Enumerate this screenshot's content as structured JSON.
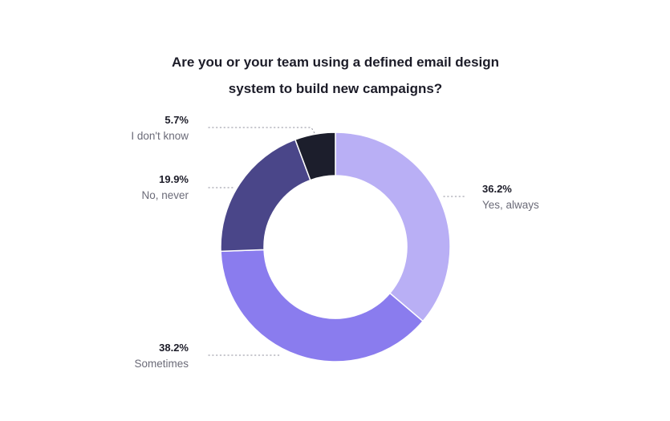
{
  "chart_data": {
    "type": "pie",
    "title_lines": [
      "Are you or your team using a defined email design",
      "system to build new campaigns?"
    ],
    "slices": [
      {
        "label": "Yes, always",
        "value": 36.2,
        "value_label": "36.2%",
        "color": "#b9aff5"
      },
      {
        "label": "Sometimes",
        "value": 38.2,
        "value_label": "38.2%",
        "color": "#8a7cee"
      },
      {
        "label": "No, never",
        "value": 19.9,
        "value_label": "19.9%",
        "color": "#4a4689"
      },
      {
        "label": "I don't know",
        "value": 5.7,
        "value_label": "5.7%",
        "color": "#1c1e2c"
      }
    ]
  }
}
